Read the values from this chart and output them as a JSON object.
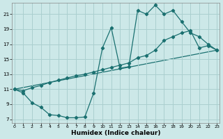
{
  "xlabel": "Humidex (Indice chaleur)",
  "xlim": [
    -0.3,
    23.3
  ],
  "ylim": [
    6.5,
    22.5
  ],
  "yticks": [
    7,
    9,
    11,
    13,
    15,
    17,
    19,
    21
  ],
  "xticks": [
    0,
    1,
    2,
    3,
    4,
    5,
    6,
    7,
    8,
    9,
    10,
    11,
    12,
    13,
    14,
    15,
    16,
    17,
    18,
    19,
    20,
    21,
    22,
    23
  ],
  "bg_color": "#cce8e8",
  "grid_color": "#aacfcf",
  "line_color": "#1a7070",
  "curve1_x": [
    0,
    1,
    2,
    3,
    4,
    5,
    6,
    7,
    8,
    9,
    10,
    11,
    12,
    13,
    14,
    15,
    16,
    17,
    18,
    19,
    20,
    21,
    22,
    23
  ],
  "curve1_y": [
    11.0,
    10.5,
    9.2,
    8.6,
    7.6,
    7.5,
    7.2,
    7.2,
    7.3,
    10.5,
    16.5,
    19.2,
    13.8,
    14.0,
    21.5,
    21.0,
    22.2,
    21.0,
    21.5,
    20.0,
    18.5,
    18.0,
    17.0,
    16.2
  ],
  "curve2_x": [
    0,
    1,
    2,
    3,
    4,
    5,
    6,
    7,
    8,
    9,
    10,
    11,
    12,
    13,
    14,
    15,
    16,
    17,
    18,
    19,
    20,
    21,
    22,
    23
  ],
  "curve2_y": [
    11.0,
    10.8,
    11.2,
    11.5,
    11.9,
    12.2,
    12.5,
    12.8,
    13.0,
    13.3,
    13.6,
    13.9,
    14.2,
    14.5,
    15.2,
    15.5,
    16.2,
    17.5,
    18.0,
    18.5,
    18.8,
    16.5,
    16.8,
    16.2
  ],
  "curve3_x": [
    0,
    23
  ],
  "curve3_y": [
    11.0,
    16.2
  ]
}
